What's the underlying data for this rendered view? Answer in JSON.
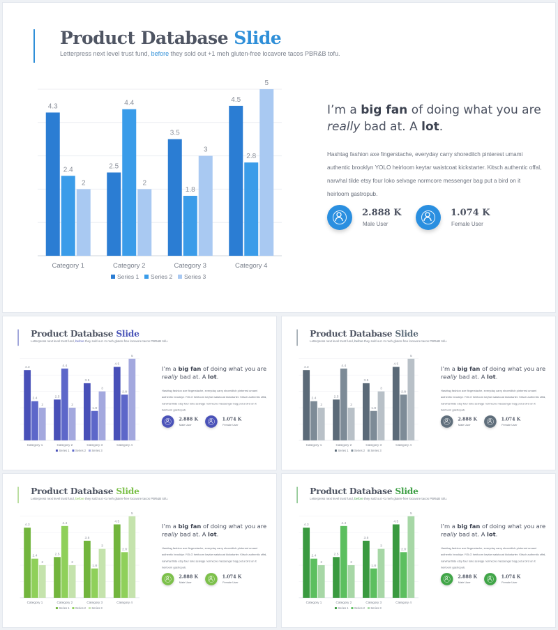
{
  "slide": {
    "title_main": "Product Database",
    "title_accent": "Slide",
    "subtitle_pre": "Letterpress next level trust fund,",
    "subtitle_link": "before",
    "subtitle_post": "they sold out +1 meh gluten-free locavore tacos PBR&B tofu.",
    "headline": {
      "pre": "I’m a",
      "bold1": "big fan",
      "mid": "of doing what you are",
      "italic": "really",
      "post": "bad at. A",
      "bold2": "lot",
      "end": "."
    },
    "body": "Hashtag fashion axe fingerstache, everyday carry shoreditch pinterest umami authentic brooklyn YOLO heirloom keytar waistcoat kickstarter. Kitsch authentic offal, narwhal tilde etsy four loko selvage normcore messenger bag put a bird on it heirloom gastropub.",
    "stats": [
      {
        "value": "2.888 K",
        "label": "Male User",
        "icon": "user-icon"
      },
      {
        "value": "1.074 K",
        "label": "Female User",
        "icon": "user-icon"
      }
    ]
  },
  "chart_data": {
    "type": "bar",
    "categories": [
      "Category 1",
      "Category 2",
      "Category 3",
      "Category 4"
    ],
    "series": [
      {
        "name": "Series 1",
        "values": [
          4.3,
          2.5,
          3.5,
          4.5
        ]
      },
      {
        "name": "Series 2",
        "values": [
          2.4,
          4.4,
          1.8,
          2.8
        ]
      },
      {
        "name": "Series 3",
        "values": [
          2,
          2,
          3,
          5
        ]
      }
    ],
    "ylim": [
      0,
      5
    ],
    "grid": true,
    "legend": "bottom",
    "data_labels": true
  },
  "themes": [
    {
      "name": "blue",
      "accent": "#2f8fd8",
      "bar": "#3c8ad8",
      "series": [
        "#2b7dd3",
        "#3a9ce9",
        "#a9c9f2"
      ],
      "circle": "#2a8fe0"
    },
    {
      "name": "indigo",
      "accent": "#4a55b8",
      "bar": "#4a55b8",
      "series": [
        "#4850b8",
        "#5d67c9",
        "#a3a8de"
      ],
      "circle": "#4a52b8"
    },
    {
      "name": "slate",
      "accent": "#5f6e7b",
      "bar": "#5f6e7b",
      "series": [
        "#5b6a78",
        "#7d8b97",
        "#b8c0c7"
      ],
      "circle": "#5f6e7b"
    },
    {
      "name": "lime",
      "accent": "#7cc04a",
      "bar": "#7cc04a",
      "series": [
        "#72b53d",
        "#8fd05a",
        "#c5e3ad"
      ],
      "circle": "#7cc04a"
    },
    {
      "name": "green",
      "accent": "#3fa046",
      "bar": "#3fa046",
      "series": [
        "#3a9a40",
        "#5cbf5f",
        "#a7d7a6"
      ],
      "circle": "#40a547"
    }
  ]
}
